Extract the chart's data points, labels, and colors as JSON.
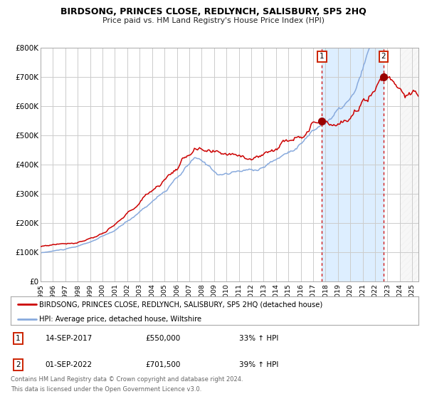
{
  "title": "BIRDSONG, PRINCES CLOSE, REDLYNCH, SALISBURY, SP5 2HQ",
  "subtitle": "Price paid vs. HM Land Registry's House Price Index (HPI)",
  "ylim": [
    0,
    800000
  ],
  "xlim_start": 1995.0,
  "xlim_end": 2025.5,
  "yticks": [
    0,
    100000,
    200000,
    300000,
    400000,
    500000,
    600000,
    700000,
    800000
  ],
  "ytick_labels": [
    "£0",
    "£100K",
    "£200K",
    "£300K",
    "£400K",
    "£500K",
    "£600K",
    "£700K",
    "£800K"
  ],
  "xticks": [
    1995,
    1996,
    1997,
    1998,
    1999,
    2000,
    2001,
    2002,
    2003,
    2004,
    2005,
    2006,
    2007,
    2008,
    2009,
    2010,
    2011,
    2012,
    2013,
    2014,
    2015,
    2016,
    2017,
    2018,
    2019,
    2020,
    2021,
    2022,
    2023,
    2024,
    2025
  ],
  "property_color": "#cc0000",
  "hpi_color": "#88aadd",
  "marker1_date": 2017.71,
  "marker1_value": 550000,
  "marker2_date": 2022.67,
  "marker2_value": 701500,
  "vline1_x": 2017.71,
  "vline2_x": 2022.67,
  "shade_start": 2017.71,
  "shade_end": 2022.67,
  "shade_color": "#ddeeff",
  "legend_property": "BIRDSONG, PRINCES CLOSE, REDLYNCH, SALISBURY, SP5 2HQ (detached house)",
  "legend_hpi": "HPI: Average price, detached house, Wiltshire",
  "annotation1_num": "1",
  "annotation1_date": "14-SEP-2017",
  "annotation1_price": "£550,000",
  "annotation1_hpi": "33% ↑ HPI",
  "annotation2_num": "2",
  "annotation2_date": "01-SEP-2022",
  "annotation2_price": "£701,500",
  "annotation2_hpi": "39% ↑ HPI",
  "footer1": "Contains HM Land Registry data © Crown copyright and database right 2024.",
  "footer2": "This data is licensed under the Open Government Licence v3.0.",
  "background_color": "#ffffff",
  "grid_color": "#cccccc"
}
